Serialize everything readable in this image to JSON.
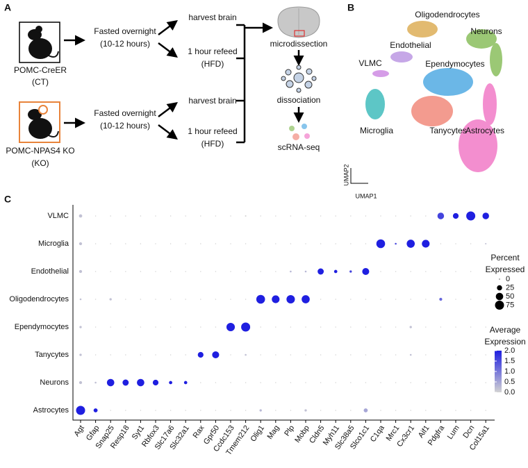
{
  "panel_a": {
    "label": "A",
    "groups": [
      {
        "name": "POMC-CreER",
        "abbr": "(CT)",
        "fast": "Fasted overnight",
        "fast_time": "(10-12 hours)",
        "harvest": "harvest brain",
        "refeed": "1 hour refeed",
        "diet": "(HFD)"
      },
      {
        "name": "POMC-NPAS4 KO",
        "abbr": "(KO)",
        "fast": "Fasted overnight",
        "fast_time": "(10-12 hours)",
        "harvest": "harvest brain",
        "refeed": "1 hour refeed",
        "diet": "(HFD)"
      }
    ],
    "steps": [
      "microdissection",
      "dissociation",
      "scRNA-seq"
    ]
  },
  "panel_b": {
    "label": "B",
    "clusters": [
      "Oligodendrocytes",
      "Neurons",
      "Endothelial",
      "VLMC",
      "Ependymocytes",
      "Microglia",
      "Tanycytes",
      "Astrocytes"
    ],
    "xlabel": "UMAP1",
    "ylabel": "UMAP2"
  },
  "chart_data": {
    "type": "dot",
    "panel_label": "C",
    "categories": [
      "Agt",
      "Gfap",
      "Snap25",
      "Resp18",
      "Syt1",
      "Rbfox3",
      "Slc17a6",
      "Slc32a1",
      "Rax",
      "Gpr50",
      "Ccdc153",
      "Tmem212",
      "Olig1",
      "Mag",
      "Plp",
      "Mobp",
      "Cldn5",
      "Myh11",
      "Slc38a5",
      "Slco1c1",
      "C1qa",
      "Mrc1",
      "Cx3cr1",
      "Aif1",
      "Pdgfra",
      "Lum",
      "Dcn",
      "Col15a1"
    ],
    "series": [
      {
        "name": "VLMC",
        "values": [
          10,
          1,
          1,
          1,
          1,
          1,
          1,
          1,
          1,
          1,
          1,
          2,
          1,
          1,
          1,
          1,
          1,
          1,
          1,
          1,
          1,
          1,
          1,
          1,
          40,
          30,
          75,
          40
        ],
        "expression": [
          0.2,
          0,
          0,
          0,
          0,
          0,
          0,
          0,
          0,
          0,
          0,
          0,
          0,
          0,
          0,
          0,
          0,
          0,
          0,
          0,
          0,
          0,
          0,
          0,
          1.6,
          2,
          2,
          2
        ]
      },
      {
        "name": "Microglia",
        "values": [
          8,
          1,
          1,
          1,
          1,
          1,
          1,
          1,
          1,
          1,
          1,
          1,
          1,
          1,
          1,
          1,
          1,
          1,
          1,
          1,
          70,
          3,
          60,
          55,
          1,
          1,
          1,
          2
        ],
        "expression": [
          0.2,
          0,
          0,
          0,
          0,
          0,
          0,
          0,
          0,
          0,
          0,
          0,
          0,
          0,
          0,
          0,
          0,
          0,
          0,
          0,
          2,
          1.5,
          2,
          2,
          0,
          0,
          0,
          0.2
        ]
      },
      {
        "name": "Endothelial",
        "values": [
          8,
          1,
          1,
          1,
          1,
          1,
          1,
          1,
          1,
          1,
          1,
          1,
          1,
          1,
          3,
          3,
          35,
          10,
          5,
          45,
          1,
          1,
          1,
          1,
          1,
          1,
          1,
          1
        ],
        "expression": [
          0.2,
          0,
          0,
          0,
          0,
          0,
          0,
          0,
          0,
          0,
          0,
          0,
          0,
          0,
          0.3,
          0.3,
          2,
          2,
          1.6,
          2,
          0,
          0,
          0,
          0,
          0,
          0,
          0,
          0
        ]
      },
      {
        "name": "Oligodendrocytes",
        "values": [
          3,
          1,
          5,
          1,
          1,
          1,
          1,
          1,
          1,
          1,
          1,
          1,
          70,
          55,
          65,
          60,
          1,
          1,
          1,
          1,
          1,
          1,
          1,
          1,
          8,
          1,
          1,
          1
        ],
        "expression": [
          0.2,
          0,
          0.2,
          0,
          0,
          0,
          0,
          0,
          0,
          0,
          0,
          0,
          2,
          2,
          2,
          2,
          0,
          0,
          0,
          0,
          0,
          0,
          0,
          0,
          1.2,
          0,
          0,
          0
        ]
      },
      {
        "name": "Ependymocytes",
        "values": [
          5,
          1,
          1,
          1,
          1,
          1,
          1,
          1,
          1,
          1,
          65,
          75,
          1,
          1,
          1,
          1,
          1,
          1,
          1,
          1,
          1,
          1,
          5,
          1,
          1,
          1,
          1,
          1
        ],
        "expression": [
          0.2,
          0,
          0,
          0,
          0,
          0,
          0,
          0,
          0,
          0,
          2,
          2,
          0,
          0,
          0,
          0,
          0,
          0,
          0,
          0,
          0,
          0,
          0.2,
          0,
          0,
          0,
          0,
          0
        ]
      },
      {
        "name": "Tanycytes",
        "values": [
          5,
          1,
          1,
          1,
          1,
          1,
          1,
          1,
          30,
          45,
          1,
          3,
          1,
          1,
          1,
          1,
          1,
          1,
          1,
          1,
          1,
          1,
          3,
          1,
          1,
          1,
          1,
          1
        ],
        "expression": [
          0.2,
          0,
          0,
          0,
          0,
          0,
          0,
          0,
          2,
          2,
          0,
          0.2,
          0,
          0,
          0,
          0,
          0,
          0,
          0,
          0,
          0,
          0,
          0.2,
          0,
          0,
          0,
          0,
          0
        ]
      },
      {
        "name": "Neurons",
        "values": [
          8,
          3,
          50,
          35,
          50,
          30,
          10,
          10,
          1,
          1,
          1,
          1,
          1,
          1,
          1,
          1,
          1,
          1,
          1,
          1,
          1,
          1,
          1,
          1,
          1,
          1,
          1,
          1
        ],
        "expression": [
          0.2,
          0.2,
          2,
          2,
          2,
          2,
          2,
          2,
          0,
          0,
          0,
          0,
          0,
          0,
          0,
          0,
          0,
          0,
          0,
          0,
          0,
          0,
          0,
          0,
          0,
          0,
          0,
          0
        ]
      },
      {
        "name": "Astrocytes",
        "values": [
          75,
          15,
          1,
          1,
          1,
          1,
          1,
          1,
          1,
          1,
          1,
          1,
          5,
          1,
          1,
          5,
          1,
          1,
          1,
          15,
          1,
          1,
          1,
          1,
          1,
          1,
          1,
          1
        ],
        "expression": [
          2,
          2,
          0,
          0,
          0,
          0,
          0,
          0,
          0,
          0,
          0,
          0,
          0.3,
          0,
          0,
          0.2,
          0,
          0,
          0,
          0.5,
          0,
          0,
          0,
          0,
          0,
          0,
          0,
          0
        ]
      }
    ],
    "size_legend": {
      "title": [
        "Percent",
        "Expressed"
      ],
      "values": [
        0,
        25,
        50,
        75
      ]
    },
    "color_legend": {
      "title": [
        "Average",
        "Expression"
      ],
      "lim": [
        0,
        2
      ],
      "low_color": "#d3d3d3",
      "high_color": "#1f1fe0",
      "ticks": [
        {
          "value": 0,
          "label": "0.0"
        },
        {
          "value": 0.5,
          "label": "0.5"
        },
        {
          "value": 1,
          "label": "1.0"
        },
        {
          "value": 1.5,
          "label": "1.5"
        },
        {
          "value": 2,
          "label": "2.0"
        }
      ]
    }
  }
}
